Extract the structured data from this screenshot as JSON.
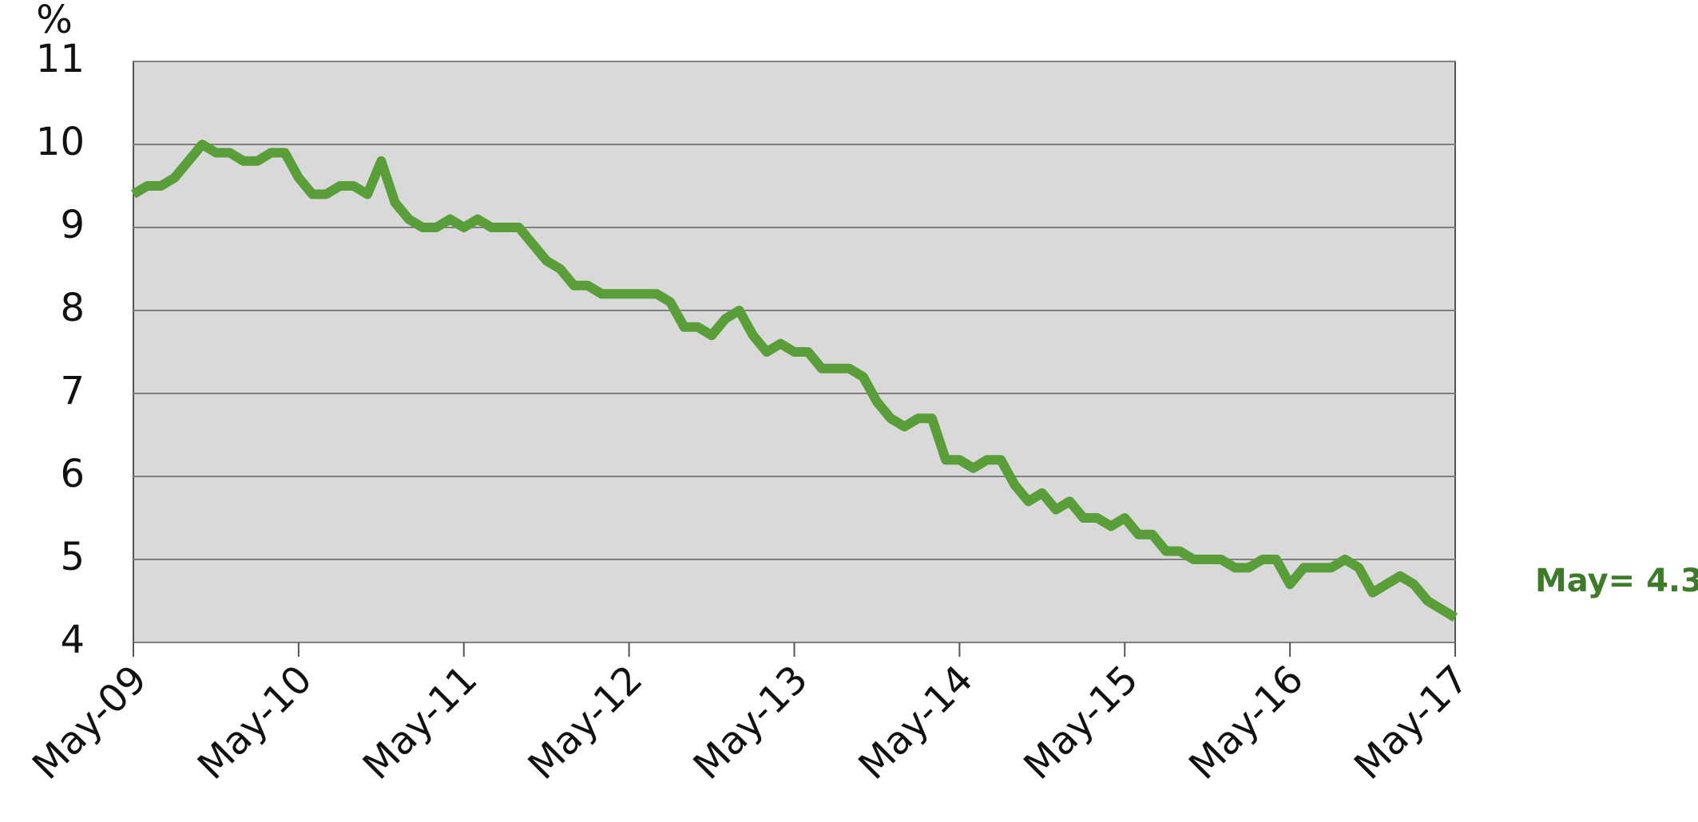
{
  "chart_data": {
    "type": "line",
    "y_label": "%",
    "annotation": "May= 4.3",
    "categories": [
      "May-09",
      null,
      null,
      null,
      null,
      null,
      null,
      null,
      null,
      null,
      null,
      null,
      "May-10",
      null,
      null,
      null,
      null,
      null,
      null,
      null,
      null,
      null,
      null,
      null,
      "May-11",
      null,
      null,
      null,
      null,
      null,
      null,
      null,
      null,
      null,
      null,
      null,
      "May-12",
      null,
      null,
      null,
      null,
      null,
      null,
      null,
      null,
      null,
      null,
      null,
      "May-13",
      null,
      null,
      null,
      null,
      null,
      null,
      null,
      null,
      null,
      null,
      null,
      "May-14",
      null,
      null,
      null,
      null,
      null,
      null,
      null,
      null,
      null,
      null,
      null,
      "May-15",
      null,
      null,
      null,
      null,
      null,
      null,
      null,
      null,
      null,
      null,
      null,
      "May-16",
      null,
      null,
      null,
      null,
      null,
      null,
      null,
      null,
      null,
      null,
      null,
      "May-17"
    ],
    "values": [
      9.4,
      9.5,
      9.5,
      9.6,
      9.8,
      10.0,
      9.9,
      9.9,
      9.8,
      9.8,
      9.9,
      9.9,
      9.6,
      9.4,
      9.4,
      9.5,
      9.5,
      9.4,
      9.8,
      9.3,
      9.1,
      9.0,
      9.0,
      9.1,
      9.0,
      9.1,
      9.0,
      9.0,
      9.0,
      8.8,
      8.6,
      8.5,
      8.3,
      8.3,
      8.2,
      8.2,
      8.2,
      8.2,
      8.2,
      8.1,
      7.8,
      7.8,
      7.7,
      7.9,
      8.0,
      7.7,
      7.5,
      7.6,
      7.5,
      7.5,
      7.3,
      7.3,
      7.3,
      7.2,
      6.9,
      6.7,
      6.6,
      6.7,
      6.7,
      6.2,
      6.2,
      6.1,
      6.2,
      6.2,
      5.9,
      5.7,
      5.8,
      5.6,
      5.7,
      5.5,
      5.5,
      5.4,
      5.5,
      5.3,
      5.3,
      5.1,
      5.1,
      5.0,
      5.0,
      5.0,
      4.9,
      4.9,
      5.0,
      5.0,
      4.7,
      4.9,
      4.9,
      4.9,
      5.0,
      4.9,
      4.6,
      4.7,
      4.8,
      4.7,
      4.5,
      4.4,
      4.3
    ],
    "color": "#5a9e3a",
    "annotation_color": "#3d7a2a",
    "plot_background": "#d9d9d9",
    "ylim": [
      4,
      11
    ],
    "yticks": [
      4,
      5,
      6,
      7,
      8,
      9,
      10,
      11
    ],
    "grid": true
  }
}
